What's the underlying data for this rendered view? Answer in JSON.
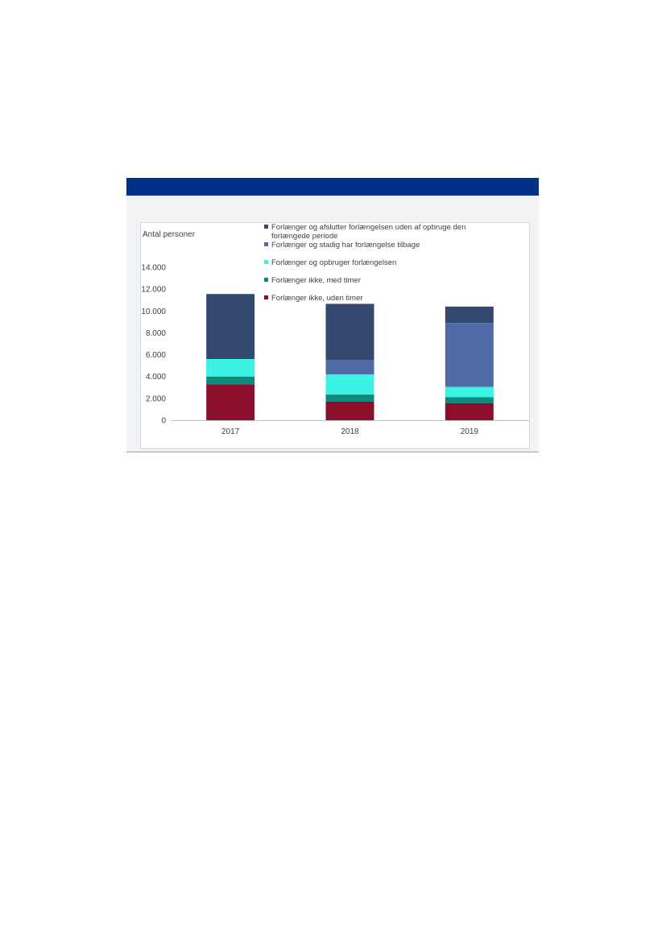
{
  "chart_data": {
    "type": "bar",
    "stacked": true,
    "ylabel": "Antal personer",
    "ylim": [
      0,
      14000
    ],
    "yticks": [
      0,
      2000,
      4000,
      6000,
      8000,
      10000,
      12000,
      14000
    ],
    "ytick_labels": [
      "0",
      "2.000",
      "4.000",
      "6.000",
      "8.000",
      "10.000",
      "12.000",
      "14.000"
    ],
    "categories": [
      "2017",
      "2018",
      "2019"
    ],
    "grid": false,
    "legend_position": "top-right",
    "series": [
      {
        "name": "Forlænger ikke, uden timer",
        "color": "#8b0e2c",
        "values": [
          3300,
          1700,
          1550
        ]
      },
      {
        "name": "Forlænger ikke, med timer",
        "color": "#0e8a7c",
        "values": [
          700,
          650,
          550
        ]
      },
      {
        "name": "Forlænger og opbruger forlængelsen",
        "color": "#3cf2e3",
        "values": [
          1600,
          1850,
          950
        ]
      },
      {
        "name": "Forlænger og stadig har forlængelse tilbage",
        "color": "#4f6ba6",
        "values": [
          0,
          1300,
          5850
        ]
      },
      {
        "name": "Forlænger og afslutter forlængelsen uden af opbruge den forlængede periode",
        "color": "#344970",
        "values": [
          5950,
          5150,
          1500
        ]
      }
    ]
  }
}
